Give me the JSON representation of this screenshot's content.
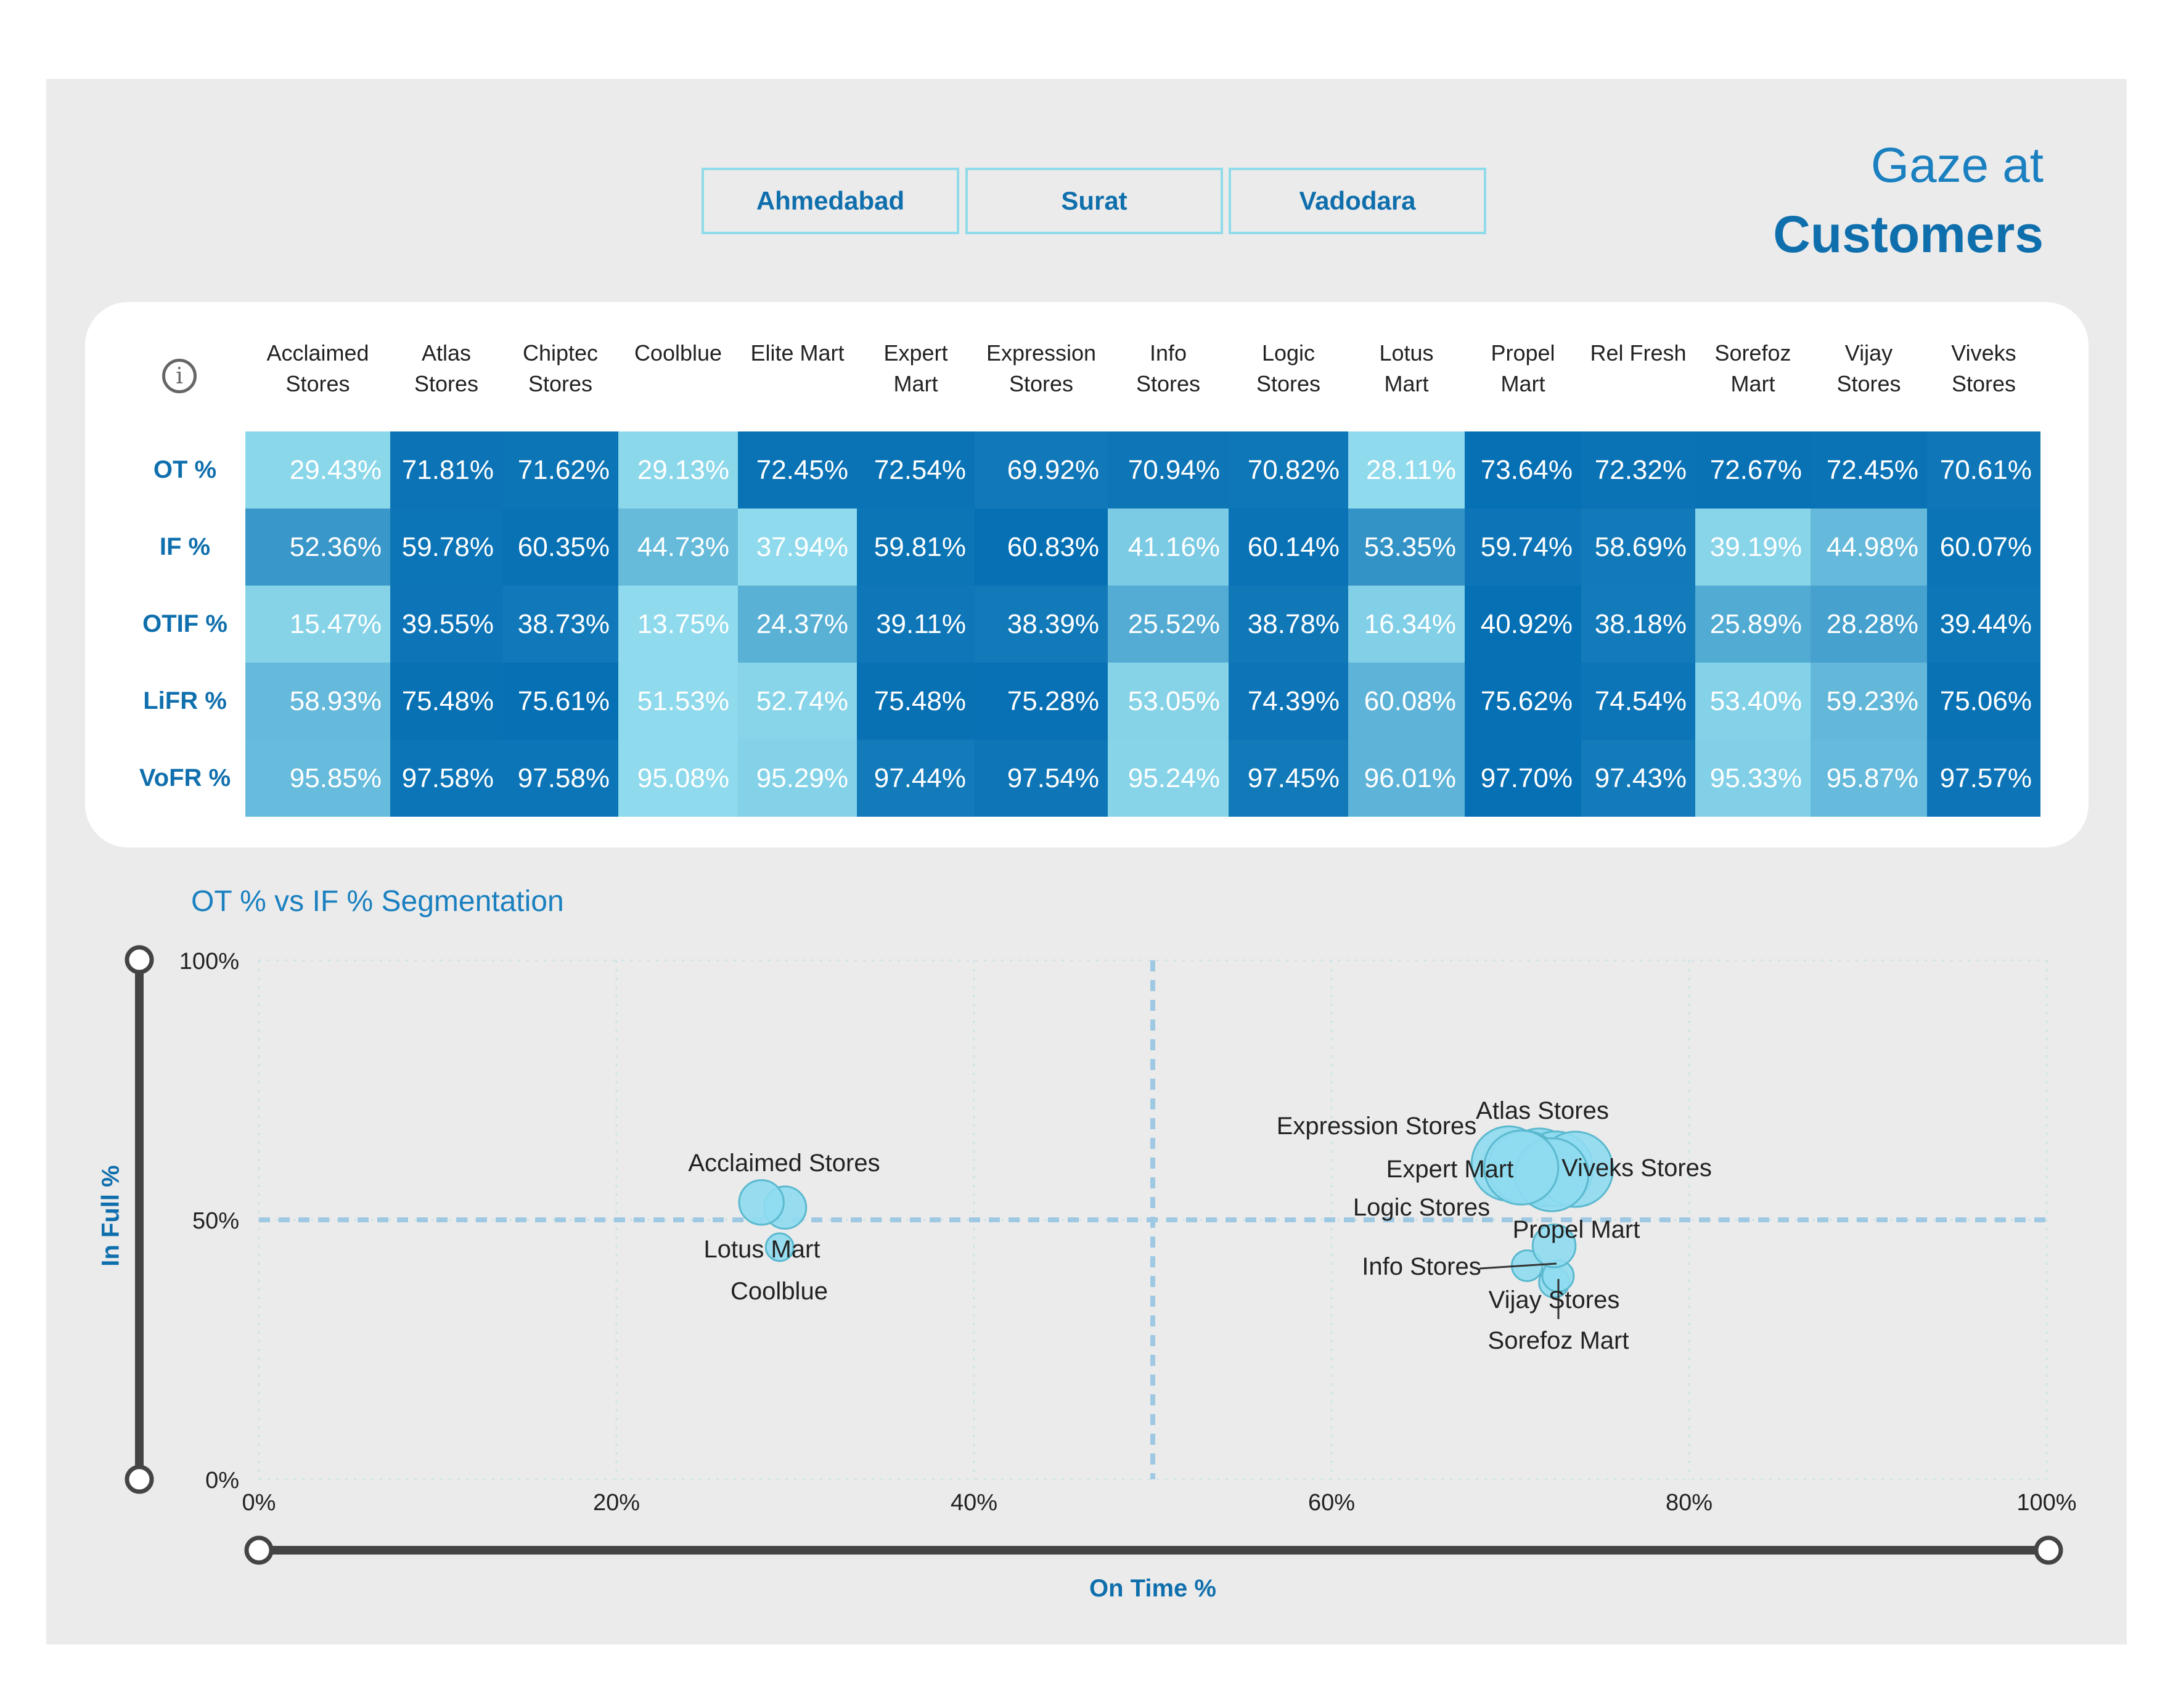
{
  "header": {
    "title_line1": "Gaze at",
    "title_line2": "Customers",
    "city_buttons": [
      "Ahmedabad",
      "Surat",
      "Vadodara"
    ]
  },
  "matrix": {
    "info_icon": "i",
    "columns": [
      "Acclaimed\nStores",
      "Atlas\nStores",
      "Chiptec\nStores",
      "Coolblue",
      "Elite Mart",
      "Expert\nMart",
      "Expression\nStores",
      "Info\nStores",
      "Logic\nStores",
      "Lotus\nMart",
      "Propel\nMart",
      "Rel Fresh",
      "Sorefoz\nMart",
      "Vijay\nStores",
      "Viveks\nStores"
    ],
    "rows": [
      {
        "label": "OT %",
        "values": [
          "29.43%",
          "71.81%",
          "71.62%",
          "29.13%",
          "72.45%",
          "72.54%",
          "69.92%",
          "70.94%",
          "70.82%",
          "28.11%",
          "73.64%",
          "72.32%",
          "72.67%",
          "72.45%",
          "70.61%"
        ]
      },
      {
        "label": "IF %",
        "values": [
          "52.36%",
          "59.78%",
          "60.35%",
          "44.73%",
          "37.94%",
          "59.81%",
          "60.83%",
          "41.16%",
          "60.14%",
          "53.35%",
          "59.74%",
          "58.69%",
          "39.19%",
          "44.98%",
          "60.07%"
        ]
      },
      {
        "label": "OTIF %",
        "values": [
          "15.47%",
          "39.55%",
          "38.73%",
          "13.75%",
          "24.37%",
          "39.11%",
          "38.39%",
          "25.52%",
          "38.78%",
          "16.34%",
          "40.92%",
          "38.18%",
          "25.89%",
          "28.28%",
          "39.44%"
        ]
      },
      {
        "label": "LiFR %",
        "values": [
          "58.93%",
          "75.48%",
          "75.61%",
          "51.53%",
          "52.74%",
          "75.48%",
          "75.28%",
          "53.05%",
          "74.39%",
          "60.08%",
          "75.62%",
          "74.54%",
          "53.40%",
          "59.23%",
          "75.06%"
        ]
      },
      {
        "label": "VoFR %",
        "values": [
          "95.85%",
          "97.58%",
          "97.58%",
          "95.08%",
          "95.29%",
          "97.44%",
          "97.54%",
          "95.24%",
          "97.45%",
          "96.01%",
          "97.70%",
          "97.43%",
          "95.33%",
          "95.87%",
          "97.57%"
        ]
      }
    ]
  },
  "chart_data": {
    "type": "scatter",
    "title": "OT % vs IF % Segmentation",
    "xlabel": "On Time %",
    "ylabel": "In Full %",
    "xlim": [
      0,
      100
    ],
    "ylim": [
      0,
      100
    ],
    "x_ticks": [
      "0%",
      "20%",
      "40%",
      "60%",
      "80%",
      "100%"
    ],
    "y_ticks": [
      "0%",
      "50%",
      "100%"
    ],
    "reference_lines": {
      "x": 50,
      "y": 50
    },
    "point_color": "#8fdcef",
    "points": [
      {
        "label": "Acclaimed Stores",
        "x": 29.43,
        "y": 52.36,
        "size": 58.93
      },
      {
        "label": "Atlas Stores",
        "x": 71.81,
        "y": 59.78,
        "size": 75.48
      },
      {
        "label": "Chiptec Stores",
        "x": 71.62,
        "y": 60.35,
        "size": 75.61
      },
      {
        "label": "Coolblue",
        "x": 29.13,
        "y": 44.73,
        "size": 51.53
      },
      {
        "label": "Elite Mart",
        "x": 72.45,
        "y": 37.94,
        "size": 52.74
      },
      {
        "label": "Expert Mart",
        "x": 72.54,
        "y": 59.81,
        "size": 75.48
      },
      {
        "label": "Expression Stores",
        "x": 69.92,
        "y": 60.83,
        "size": 75.28
      },
      {
        "label": "Info Stores",
        "x": 70.94,
        "y": 41.16,
        "size": 53.05
      },
      {
        "label": "Logic Stores",
        "x": 70.82,
        "y": 60.14,
        "size": 74.39
      },
      {
        "label": "Lotus Mart",
        "x": 28.11,
        "y": 53.35,
        "size": 60.08
      },
      {
        "label": "Propel Mart",
        "x": 73.64,
        "y": 59.74,
        "size": 75.62
      },
      {
        "label": "Rel Fresh",
        "x": 72.32,
        "y": 58.69,
        "size": 74.54
      },
      {
        "label": "Sorefoz Mart",
        "x": 72.67,
        "y": 39.19,
        "size": 53.4
      },
      {
        "label": "Vijay Stores",
        "x": 72.45,
        "y": 44.98,
        "size": 59.23
      },
      {
        "label": "Viveks Stores",
        "x": 70.61,
        "y": 60.07,
        "size": 75.06
      }
    ],
    "visible_labels": [
      "Acclaimed Stores",
      "Lotus Mart",
      "Coolblue",
      "Expression Stores",
      "Atlas Stores",
      "Expert Mart",
      "Viveks Stores",
      "Logic Stores",
      "Propel Mart",
      "Info Stores",
      "Vijay Stores",
      "Sorefoz Mart"
    ],
    "grid": true
  }
}
